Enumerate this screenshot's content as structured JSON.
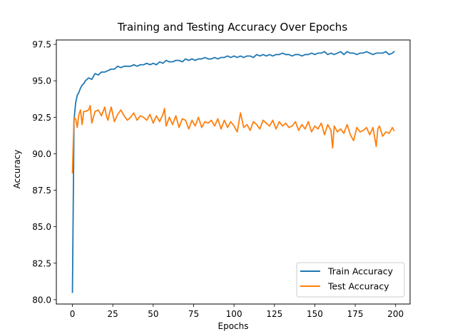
{
  "chart_data": {
    "type": "line",
    "title": "Training and Testing Accuracy Over Epochs",
    "xlabel": "Epochs",
    "ylabel": "Accuracy",
    "xlim": [
      -9.95,
      208.95
    ],
    "ylim": [
      79.7,
      97.8
    ],
    "xticks": [
      0,
      25,
      50,
      75,
      100,
      125,
      150,
      175,
      200
    ],
    "xtick_labels": [
      "0",
      "25",
      "50",
      "75",
      "100",
      "125",
      "150",
      "175",
      "200"
    ],
    "yticks": [
      80.0,
      82.5,
      85.0,
      87.5,
      90.0,
      92.5,
      95.0,
      97.5
    ],
    "ytick_labels": [
      "80.0",
      "82.5",
      "85.0",
      "87.5",
      "90.0",
      "92.5",
      "95.0",
      "97.5"
    ],
    "grid": false,
    "legend": "lower-right",
    "series": [
      {
        "name": "Train Accuracy",
        "color": "#1f77b4",
        "x": [
          0,
          1,
          2,
          3,
          4,
          5,
          6,
          7,
          8,
          10,
          12,
          14,
          16,
          18,
          20,
          22,
          24,
          26,
          28,
          30,
          32,
          34,
          36,
          38,
          40,
          42,
          44,
          46,
          48,
          50,
          52,
          54,
          56,
          58,
          60,
          62,
          64,
          66,
          68,
          70,
          72,
          74,
          76,
          78,
          80,
          82,
          84,
          86,
          88,
          90,
          92,
          94,
          96,
          98,
          100,
          102,
          104,
          106,
          108,
          110,
          112,
          114,
          116,
          118,
          120,
          122,
          124,
          126,
          128,
          130,
          132,
          134,
          136,
          138,
          140,
          142,
          144,
          146,
          148,
          150,
          152,
          154,
          156,
          158,
          160,
          162,
          164,
          166,
          168,
          170,
          172,
          174,
          176,
          178,
          180,
          182,
          184,
          186,
          188,
          190,
          192,
          194,
          196,
          198,
          199
        ],
        "y": [
          80.5,
          92.3,
          93.5,
          94.0,
          94.2,
          94.5,
          94.7,
          94.8,
          95.0,
          95.2,
          95.1,
          95.5,
          95.4,
          95.6,
          95.6,
          95.7,
          95.8,
          95.8,
          96.0,
          95.9,
          96.0,
          96.0,
          96.0,
          96.1,
          96.0,
          96.1,
          96.1,
          96.2,
          96.1,
          96.2,
          96.1,
          96.3,
          96.2,
          96.4,
          96.3,
          96.3,
          96.4,
          96.4,
          96.3,
          96.5,
          96.4,
          96.5,
          96.4,
          96.5,
          96.5,
          96.6,
          96.5,
          96.5,
          96.6,
          96.5,
          96.6,
          96.6,
          96.7,
          96.6,
          96.7,
          96.6,
          96.7,
          96.6,
          96.7,
          96.7,
          96.6,
          96.8,
          96.7,
          96.8,
          96.7,
          96.8,
          96.7,
          96.8,
          96.8,
          96.9,
          96.8,
          96.8,
          96.7,
          96.8,
          96.8,
          96.7,
          96.8,
          96.8,
          96.9,
          96.8,
          96.9,
          96.9,
          97.0,
          96.8,
          96.9,
          96.8,
          96.9,
          97.0,
          96.8,
          97.0,
          96.9,
          96.9,
          96.8,
          96.9,
          96.9,
          97.0,
          96.9,
          96.8,
          96.9,
          96.9,
          96.9,
          97.0,
          96.8,
          96.9,
          97.0
        ]
      },
      {
        "name": "Test Accuracy",
        "color": "#ff7f0e",
        "x": [
          0,
          1,
          2,
          3,
          4,
          5,
          6,
          7,
          8,
          10,
          11,
          12,
          14,
          16,
          18,
          20,
          21,
          22,
          23,
          24,
          26,
          28,
          30,
          32,
          34,
          36,
          38,
          40,
          42,
          44,
          46,
          48,
          50,
          52,
          54,
          56,
          57,
          58,
          60,
          62,
          64,
          66,
          68,
          70,
          72,
          74,
          76,
          78,
          80,
          82,
          84,
          86,
          88,
          90,
          92,
          94,
          96,
          98,
          100,
          102,
          104,
          106,
          108,
          110,
          112,
          114,
          116,
          118,
          120,
          122,
          124,
          126,
          128,
          130,
          132,
          134,
          136,
          138,
          140,
          142,
          144,
          146,
          148,
          150,
          152,
          154,
          156,
          158,
          160,
          161,
          162,
          164,
          166,
          168,
          170,
          172,
          174,
          176,
          178,
          180,
          182,
          184,
          186,
          188,
          189,
          190,
          192,
          194,
          196,
          198,
          199
        ],
        "y": [
          88.7,
          92.5,
          92.4,
          91.8,
          92.7,
          93.0,
          92.0,
          92.9,
          92.9,
          93.0,
          93.3,
          92.1,
          92.9,
          93.0,
          92.6,
          93.2,
          92.6,
          92.3,
          92.8,
          93.2,
          92.2,
          92.7,
          93.0,
          92.6,
          92.3,
          92.5,
          92.8,
          92.3,
          92.6,
          92.5,
          92.3,
          92.7,
          92.1,
          92.6,
          92.2,
          92.7,
          93.1,
          91.9,
          92.5,
          92.0,
          92.6,
          91.8,
          92.4,
          92.3,
          91.7,
          92.3,
          91.9,
          92.5,
          91.8,
          92.2,
          92.1,
          92.3,
          91.9,
          92.4,
          91.7,
          92.3,
          91.8,
          92.2,
          91.9,
          91.5,
          92.8,
          91.8,
          92.0,
          91.6,
          92.2,
          92.0,
          91.7,
          92.3,
          92.1,
          91.9,
          92.3,
          91.7,
          92.2,
          91.9,
          92.1,
          91.8,
          91.9,
          92.2,
          91.6,
          92.0,
          91.7,
          92.2,
          91.5,
          91.9,
          91.7,
          92.1,
          91.3,
          92.0,
          91.6,
          90.4,
          91.9,
          91.5,
          91.7,
          91.4,
          92.0,
          91.3,
          90.9,
          91.8,
          91.5,
          91.6,
          91.8,
          91.3,
          91.8,
          90.5,
          91.7,
          91.9,
          91.2,
          91.5,
          91.4,
          91.8,
          91.6
        ]
      }
    ]
  }
}
